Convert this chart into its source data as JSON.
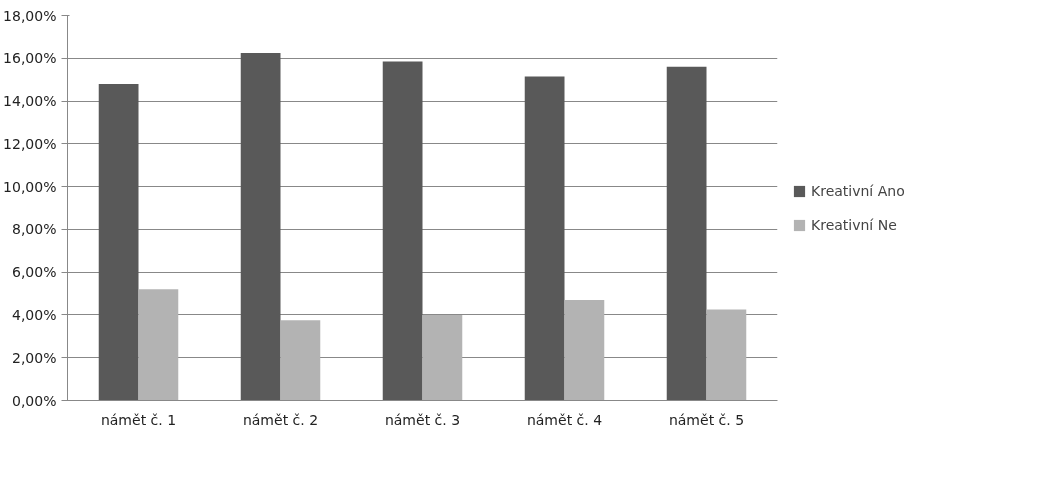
{
  "chart_data": {
    "type": "bar",
    "categories": [
      "námět č. 1",
      "námět č. 2",
      "námět č. 3",
      "námět č. 4",
      "námět č. 5"
    ],
    "series": [
      {
        "name": "Kreativní Ano",
        "color": "#595959",
        "values": [
          14.8,
          16.25,
          15.85,
          15.15,
          15.6
        ]
      },
      {
        "name": "Kreativní Ne",
        "color": "#b3b3b3",
        "values": [
          5.2,
          3.75,
          4.0,
          4.7,
          4.25
        ]
      }
    ],
    "ylim": [
      0,
      18
    ],
    "yticks": [
      {
        "value": 0,
        "label": "0,00%"
      },
      {
        "value": 2,
        "label": "2,00%"
      },
      {
        "value": 4,
        "label": "4,00%"
      },
      {
        "value": 6,
        "label": "6,00%"
      },
      {
        "value": 8,
        "label": "8,00%"
      },
      {
        "value": 10,
        "label": "10,00%"
      },
      {
        "value": 12,
        "label": "12,00%"
      },
      {
        "value": 14,
        "label": "14,00%"
      },
      {
        "value": 16,
        "label": "16,00%"
      },
      {
        "value": 18,
        "label": "18,00%"
      }
    ],
    "grid": "y",
    "legend": "right"
  }
}
